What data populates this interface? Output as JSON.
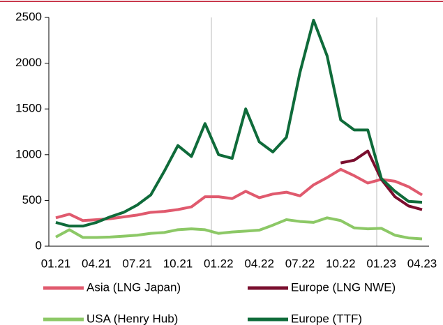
{
  "chart_data": {
    "type": "line",
    "categories": [
      "01.21",
      null,
      null,
      "04.21",
      null,
      null,
      "07.21",
      null,
      null,
      "10.21",
      null,
      null,
      "01.22",
      null,
      null,
      "04.22",
      null,
      null,
      "07.22",
      null,
      null,
      "10.22",
      null,
      null,
      "01.23",
      null,
      null,
      "04.23"
    ],
    "series": [
      {
        "name": "Asia (LNG Japan)",
        "color": "#e05a6e",
        "values": [
          310,
          350,
          280,
          290,
          300,
          320,
          340,
          370,
          380,
          400,
          430,
          540,
          540,
          520,
          600,
          530,
          570,
          590,
          550,
          670,
          750,
          840,
          770,
          690,
          730,
          710,
          650,
          560
        ]
      },
      {
        "name": "Europe (LNG NWE)",
        "color": "#7a0e2e",
        "values": [
          null,
          null,
          null,
          null,
          null,
          null,
          null,
          null,
          null,
          null,
          null,
          null,
          null,
          null,
          null,
          null,
          null,
          null,
          null,
          null,
          null,
          910,
          940,
          1040,
          730,
          540,
          440,
          400
        ]
      },
      {
        "name": "USA (Henry Hub)",
        "color": "#8cc866",
        "values": [
          100,
          180,
          95,
          95,
          100,
          110,
          120,
          140,
          150,
          180,
          190,
          180,
          140,
          155,
          165,
          175,
          230,
          290,
          270,
          260,
          310,
          280,
          200,
          190,
          195,
          120,
          90,
          80
        ]
      },
      {
        "name": "Europe (TTF)",
        "color": "#0f6b3a",
        "values": [
          260,
          220,
          220,
          260,
          320,
          370,
          450,
          560,
          820,
          1100,
          980,
          1340,
          1000,
          960,
          1500,
          1140,
          1030,
          1190,
          1900,
          2470,
          2080,
          1380,
          1270,
          1270,
          740,
          600,
          490,
          480
        ]
      }
    ],
    "ylim": [
      0,
      2500
    ],
    "yticks": [
      0,
      500,
      1000,
      1500,
      2000,
      2500
    ]
  }
}
